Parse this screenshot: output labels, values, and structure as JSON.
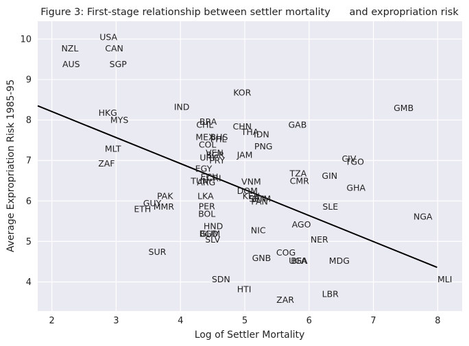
{
  "chart_data": {
    "type": "scatter",
    "title": "Figure 3: First-stage relationship between settler mortality      and expropriation risk",
    "xlabel": "Log of Settler Mortality",
    "ylabel": "Average Expropriation Risk 1985-95",
    "xlim": [
      1.78,
      8.38
    ],
    "ylim": [
      3.28,
      10.44
    ],
    "xticks": [
      2,
      3,
      4,
      5,
      6,
      7,
      8
    ],
    "yticks": [
      4,
      5,
      6,
      7,
      8,
      9,
      10
    ],
    "grid": true,
    "background": "#EAEAF2",
    "line_color": "#000000",
    "fit_line": {
      "x": [
        1.78,
        7.99
      ],
      "y": [
        8.35,
        4.36
      ]
    },
    "points": [
      {
        "label": "USA",
        "x": 2.88,
        "y": 10.05
      },
      {
        "label": "NZL",
        "x": 2.28,
        "y": 9.77
      },
      {
        "label": "CAN",
        "x": 2.97,
        "y": 9.77
      },
      {
        "label": "AUS",
        "x": 2.3,
        "y": 9.38
      },
      {
        "label": "SGP",
        "x": 3.03,
        "y": 9.38
      },
      {
        "label": "KOR",
        "x": 4.96,
        "y": 8.68
      },
      {
        "label": "GMB",
        "x": 7.47,
        "y": 8.3
      },
      {
        "label": "IND",
        "x": 4.02,
        "y": 8.32
      },
      {
        "label": "HKG",
        "x": 2.87,
        "y": 8.18
      },
      {
        "label": "MYS",
        "x": 3.05,
        "y": 8.0
      },
      {
        "label": "BRA",
        "x": 4.43,
        "y": 7.96
      },
      {
        "label": "CHL",
        "x": 4.38,
        "y": 7.88
      },
      {
        "label": "GAB",
        "x": 5.82,
        "y": 7.88
      },
      {
        "label": "CHN",
        "x": 4.96,
        "y": 7.84
      },
      {
        "label": "THA",
        "x": 5.08,
        "y": 7.71
      },
      {
        "label": "IDN",
        "x": 5.26,
        "y": 7.65
      },
      {
        "label": "MEX",
        "x": 4.38,
        "y": 7.58
      },
      {
        "label": "BHS",
        "x": 4.6,
        "y": 7.58
      },
      {
        "label": "PHL",
        "x": 4.59,
        "y": 7.53
      },
      {
        "label": "COL",
        "x": 4.42,
        "y": 7.39
      },
      {
        "label": "PNG",
        "x": 5.29,
        "y": 7.35
      },
      {
        "label": "MLT",
        "x": 2.95,
        "y": 7.29
      },
      {
        "label": "VEN",
        "x": 4.53,
        "y": 7.19
      },
      {
        "label": "BGR",
        "x": 4.54,
        "y": 7.14
      },
      {
        "label": "JAM",
        "x": 5.0,
        "y": 7.14
      },
      {
        "label": "URY",
        "x": 4.43,
        "y": 7.07
      },
      {
        "label": "PRY",
        "x": 4.57,
        "y": 7.0
      },
      {
        "label": "CIV",
        "x": 6.62,
        "y": 7.05
      },
      {
        "label": "TGO",
        "x": 6.71,
        "y": 6.97
      },
      {
        "label": "ZAF",
        "x": 2.85,
        "y": 6.93
      },
      {
        "label": "EGY",
        "x": 4.36,
        "y": 6.8
      },
      {
        "label": "TZA",
        "x": 5.83,
        "y": 6.68
      },
      {
        "label": "GIN",
        "x": 6.32,
        "y": 6.62
      },
      {
        "label": "ECU",
        "x": 4.45,
        "y": 6.6
      },
      {
        "label": "CRI",
        "x": 4.52,
        "y": 6.56
      },
      {
        "label": "TUN",
        "x": 4.3,
        "y": 6.5
      },
      {
        "label": "CMR",
        "x": 5.85,
        "y": 6.5
      },
      {
        "label": "ARG",
        "x": 4.4,
        "y": 6.46
      },
      {
        "label": "VNM",
        "x": 5.1,
        "y": 6.48
      },
      {
        "label": "GHA",
        "x": 6.73,
        "y": 6.33
      },
      {
        "label": "DOM",
        "x": 5.04,
        "y": 6.25
      },
      {
        "label": "KEN",
        "x": 5.1,
        "y": 6.12
      },
      {
        "label": "SEN",
        "x": 5.2,
        "y": 6.06
      },
      {
        "label": "GTM",
        "x": 5.26,
        "y": 6.06
      },
      {
        "label": "PAN",
        "x": 5.23,
        "y": 5.99
      },
      {
        "label": "LKA",
        "x": 4.39,
        "y": 6.12
      },
      {
        "label": "PAK",
        "x": 3.76,
        "y": 6.12
      },
      {
        "label": "GUY",
        "x": 3.56,
        "y": 5.95
      },
      {
        "label": "MMR",
        "x": 3.74,
        "y": 5.86
      },
      {
        "label": "ETH",
        "x": 3.41,
        "y": 5.8
      },
      {
        "label": "PER",
        "x": 4.41,
        "y": 5.87
      },
      {
        "label": "SLE",
        "x": 6.33,
        "y": 5.86
      },
      {
        "label": "BOL",
        "x": 4.41,
        "y": 5.68
      },
      {
        "label": "NGA",
        "x": 7.77,
        "y": 5.62
      },
      {
        "label": "HND",
        "x": 4.51,
        "y": 5.38
      },
      {
        "label": "AGO",
        "x": 5.88,
        "y": 5.42
      },
      {
        "label": "NIC",
        "x": 5.21,
        "y": 5.28
      },
      {
        "label": "BGD",
        "x": 4.44,
        "y": 5.19
      },
      {
        "label": "GUM",
        "x": 4.46,
        "y": 5.19
      },
      {
        "label": "SLV",
        "x": 4.5,
        "y": 5.05
      },
      {
        "label": "NER",
        "x": 6.16,
        "y": 5.05
      },
      {
        "label": "SUR",
        "x": 3.64,
        "y": 4.74
      },
      {
        "label": "COG",
        "x": 5.64,
        "y": 4.73
      },
      {
        "label": "GNB",
        "x": 5.26,
        "y": 4.59
      },
      {
        "label": "BFA",
        "x": 5.84,
        "y": 4.52
      },
      {
        "label": "UGA",
        "x": 5.83,
        "y": 4.52
      },
      {
        "label": "MDG",
        "x": 6.47,
        "y": 4.52
      },
      {
        "label": "MLI",
        "x": 8.11,
        "y": 4.07
      },
      {
        "label": "SDN",
        "x": 4.63,
        "y": 4.07
      },
      {
        "label": "HTI",
        "x": 4.99,
        "y": 3.82
      },
      {
        "label": "LBR",
        "x": 6.33,
        "y": 3.7
      },
      {
        "label": "ZAR",
        "x": 5.63,
        "y": 3.56
      }
    ]
  }
}
